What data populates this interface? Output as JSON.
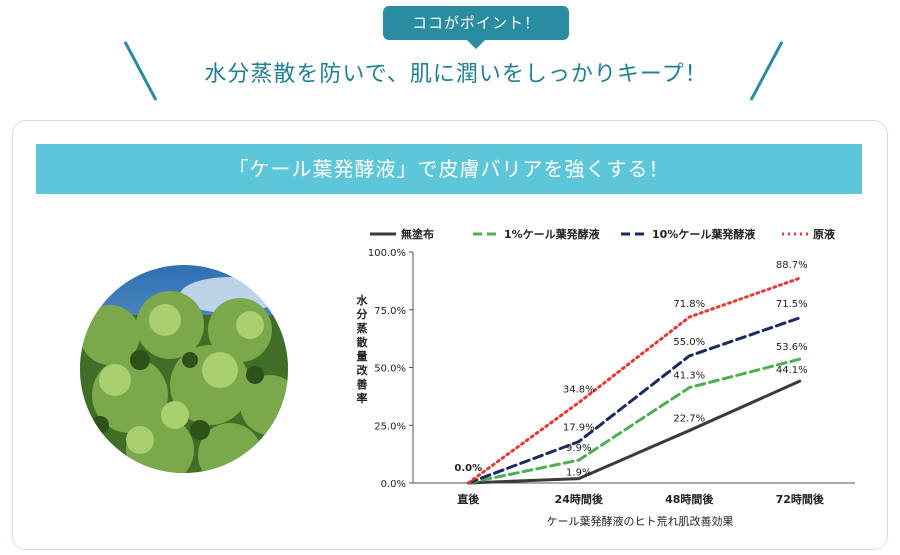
{
  "header": {
    "point_label": "ココがポイント！",
    "headline": "水分蒸散を防いで、肌に潤いをしっかりキープ！"
  },
  "banner": {
    "text": "「ケール葉発酵液」で皮膚バリアを強くする！"
  },
  "colors": {
    "accent": "#2a8ca0",
    "banner": "#5ec6d9"
  },
  "chart_data": {
    "type": "line",
    "categories": [
      "直後",
      "24時間後",
      "48時間後",
      "72時間後"
    ],
    "ylim": [
      0,
      100
    ],
    "yticks": [
      "0.0%",
      "25.0%",
      "50.0%",
      "75.0%",
      "100.0%"
    ],
    "ylabel": "水分蒸散量改善率",
    "xlabel": "ケール葉発酵液のヒト荒れ肌改善効果",
    "legend_position": "top",
    "series": [
      {
        "name": "無塗布",
        "values": [
          0,
          1.9,
          22.7,
          44.1
        ],
        "labels": [
          "",
          "1.9%",
          "22.7%",
          "44.1%"
        ],
        "color": "#3a3a3a",
        "style": "solid"
      },
      {
        "name": "1%ケール葉発酵液",
        "values": [
          0,
          9.9,
          41.3,
          53.6
        ],
        "labels": [
          "",
          "9.9%",
          "41.3%",
          "53.6%"
        ],
        "color": "#4caf50",
        "style": "dashed"
      },
      {
        "name": "10%ケール葉発酵液",
        "values": [
          0,
          17.9,
          55.0,
          71.5
        ],
        "labels": [
          "",
          "17.9%",
          "55.0%",
          "71.5%"
        ],
        "color": "#1a2a5e",
        "style": "dashed"
      },
      {
        "name": "原液",
        "values": [
          0,
          34.8,
          71.8,
          88.7
        ],
        "labels": [
          "0.0%",
          "34.8%",
          "71.8%",
          "88.7%"
        ],
        "color": "#e53935",
        "style": "dotted"
      }
    ]
  }
}
